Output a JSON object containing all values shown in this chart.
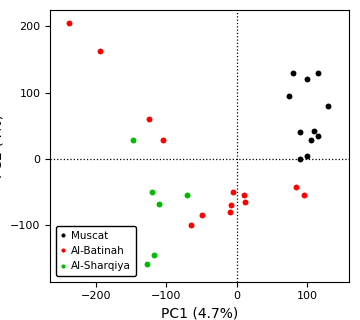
{
  "muscat": {
    "x": [
      80,
      100,
      115,
      130,
      75,
      90,
      110,
      115,
      105,
      100,
      90
    ],
    "y": [
      130,
      120,
      130,
      80,
      95,
      40,
      42,
      35,
      28,
      5,
      0
    ],
    "color": "#000000"
  },
  "al_batinah": {
    "x": [
      -238,
      -195,
      -125,
      -105,
      -5,
      10,
      12,
      -8,
      -10,
      -50,
      -65,
      85,
      95
    ],
    "y": [
      205,
      162,
      60,
      28,
      -50,
      -55,
      -65,
      -70,
      -80,
      -85,
      -100,
      -42,
      -55
    ],
    "color": "#FF0000"
  },
  "al_sharqiya": {
    "x": [
      -148,
      -120,
      -110,
      -118,
      -128,
      -70
    ],
    "y": [
      28,
      -50,
      -68,
      -145,
      -158,
      -55
    ],
    "color": "#00BB00"
  },
  "xlabel": "PC1 (4.7%)",
  "xlim": [
    -265,
    160
  ],
  "ylim": [
    -185,
    225
  ],
  "xticks": [
    -200,
    -100,
    0,
    100
  ],
  "yticks": [
    -100,
    0,
    100,
    200
  ],
  "legend_labels": [
    "Muscat",
    "Al-Batinah",
    "Al-Sharqiya"
  ],
  "legend_colors": [
    "#000000",
    "#FF0000",
    "#00BB00"
  ],
  "vline_x": 0,
  "hline_y": 0,
  "background_color": "#FFFFFF",
  "marker_size": 18,
  "tick_fontsize": 8,
  "label_fontsize": 10
}
